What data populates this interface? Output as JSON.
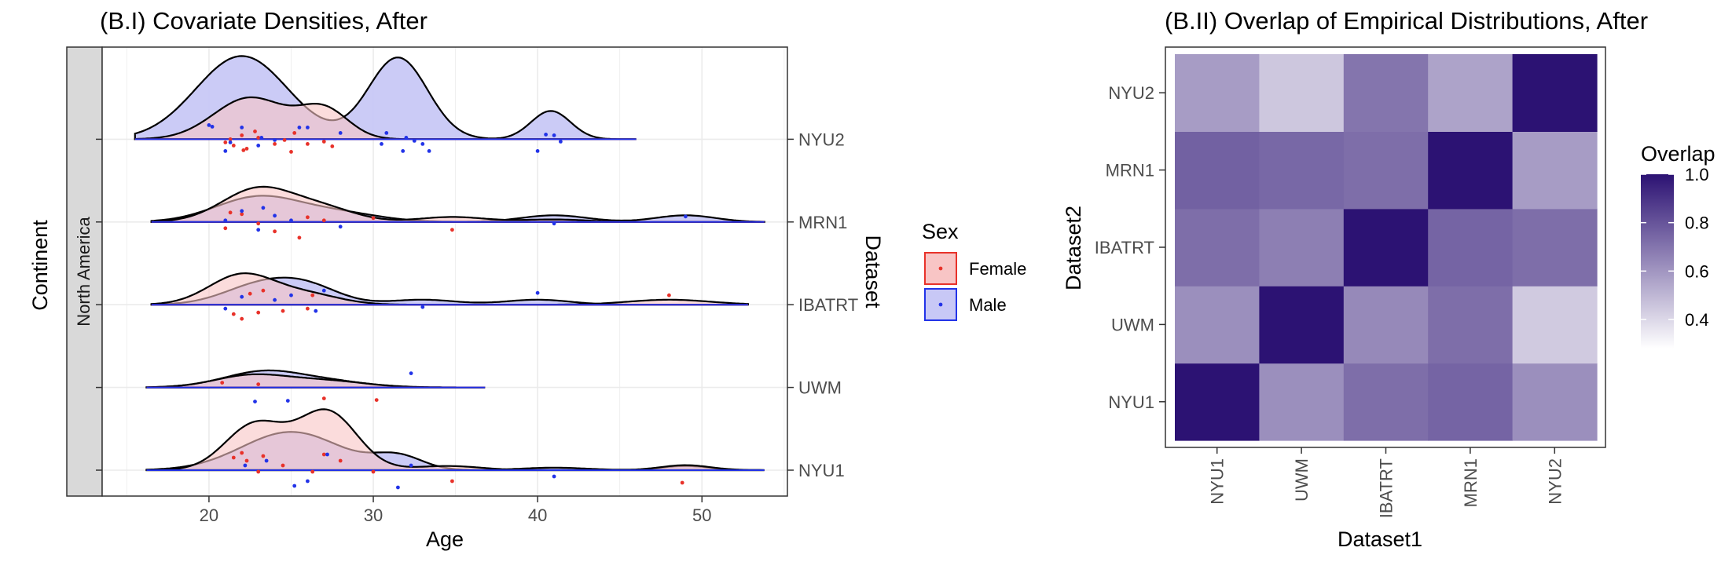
{
  "chart_data": [
    {
      "type": "ridgeline-density",
      "title": "(B.I) Covariate Densities, After",
      "xlabel": "Age",
      "ylabel": "Continent",
      "right_label": "Dataset",
      "facet_label": "North America",
      "xlim": [
        13.5,
        55.2
      ],
      "xticks": [
        20,
        30,
        40,
        50
      ],
      "x_tick_labels": [
        "20",
        "30",
        "40",
        "50"
      ],
      "datasets": [
        "NYU1",
        "UWM",
        "IBATRT",
        "MRN1",
        "NYU2"
      ],
      "legend": {
        "title": "Sex",
        "entries": [
          {
            "name": "Female",
            "fill": "#f8c5c5",
            "border": "#e8322a",
            "point": "#e8322a"
          },
          {
            "name": "Male",
            "fill": "#c8c8f6",
            "border": "#2233e8",
            "point": "#2233e8"
          }
        ]
      },
      "series": [
        {
          "dataset": "NYU2",
          "range": [
            15.5,
            46
          ],
          "male_peaks": [
            [
              22,
              1.0,
              2.8
            ],
            [
              31.5,
              0.98,
              1.8
            ],
            [
              40.8,
              0.34,
              1.2
            ]
          ],
          "female_peaks": [
            [
              22.5,
              0.5,
              2.2
            ],
            [
              27,
              0.35,
              1.5
            ]
          ],
          "female_points": [
            [
              21,
              4
            ],
            [
              21.5,
              8
            ],
            [
              22,
              -5
            ],
            [
              22.3,
              12
            ],
            [
              23,
              -2
            ],
            [
              24,
              6
            ],
            [
              25,
              16
            ],
            [
              26,
              6
            ],
            [
              27,
              3
            ],
            [
              21.3,
              0
            ],
            [
              22.8,
              -10
            ],
            [
              25.2,
              -8
            ],
            [
              27.5,
              9
            ],
            [
              24.6,
              1
            ],
            [
              22.1,
              14
            ]
          ],
          "male_points": [
            [
              20,
              -18
            ],
            [
              20.2,
              -16
            ],
            [
              21,
              15
            ],
            [
              21.3,
              4
            ],
            [
              22,
              -15
            ],
            [
              23,
              8
            ],
            [
              23.2,
              -2
            ],
            [
              24,
              1
            ],
            [
              25.5,
              -15
            ],
            [
              26,
              -15
            ],
            [
              28,
              -8
            ],
            [
              30.5,
              6
            ],
            [
              30.8,
              -8
            ],
            [
              31.8,
              15
            ],
            [
              32,
              -2
            ],
            [
              32.5,
              2
            ],
            [
              33,
              6
            ],
            [
              33.4,
              15
            ],
            [
              40,
              15
            ],
            [
              40.5,
              -6
            ],
            [
              41,
              -5
            ],
            [
              41.4,
              3
            ]
          ]
        },
        {
          "dataset": "MRN1",
          "range": [
            16.5,
            53.8
          ],
          "male_peaks": [
            [
              23,
              0.3,
              2.6
            ],
            [
              28,
              0.1,
              2.5
            ],
            [
              41,
              0.08,
              2.0
            ],
            [
              49,
              0.08,
              1.8
            ]
          ],
          "female_peaks": [
            [
              23,
              0.4,
              2.2
            ],
            [
              27,
              0.15,
              2.0
            ],
            [
              34.8,
              0.06,
              2.0
            ],
            [
              41,
              0.03,
              2.0
            ]
          ],
          "female_points": [
            [
              21,
              8
            ],
            [
              21.3,
              -12
            ],
            [
              22,
              -10
            ],
            [
              23,
              2
            ],
            [
              24,
              12
            ],
            [
              25.5,
              20
            ],
            [
              26,
              -6
            ],
            [
              27,
              -2
            ],
            [
              30,
              -5
            ],
            [
              34.8,
              10
            ]
          ],
          "male_points": [
            [
              21,
              -2
            ],
            [
              22,
              -14
            ],
            [
              23,
              10
            ],
            [
              23.3,
              -18
            ],
            [
              24,
              -8
            ],
            [
              25,
              -2
            ],
            [
              28,
              6
            ],
            [
              41,
              2
            ],
            [
              49,
              -7
            ]
          ]
        },
        {
          "dataset": "IBATRT",
          "range": [
            16.5,
            52.8
          ],
          "male_peaks": [
            [
              23,
              0.22,
              2.2
            ],
            [
              26,
              0.2,
              2.0
            ],
            [
              33,
              0.06,
              2.0
            ],
            [
              40,
              0.06,
              2.0
            ]
          ],
          "female_peaks": [
            [
              22,
              0.36,
              2.0
            ],
            [
              26,
              0.12,
              2.0
            ],
            [
              48,
              0.06,
              2.5
            ]
          ],
          "female_points": [
            [
              21.5,
              12
            ],
            [
              22,
              18
            ],
            [
              22.5,
              -14
            ],
            [
              23,
              10
            ],
            [
              23.3,
              -18
            ],
            [
              24.5,
              8
            ],
            [
              26,
              5
            ],
            [
              26.3,
              -12
            ],
            [
              48,
              -12
            ]
          ],
          "male_points": [
            [
              21,
              5
            ],
            [
              22,
              -10
            ],
            [
              24,
              -6
            ],
            [
              25,
              -12
            ],
            [
              26.5,
              8
            ],
            [
              27,
              -18
            ],
            [
              33,
              3
            ],
            [
              40,
              -15
            ]
          ]
        },
        {
          "dataset": "UWM",
          "range": [
            16.2,
            36.8
          ],
          "male_peaks": [
            [
              23.5,
              0.2,
              2.5
            ],
            [
              28,
              0.05,
              2.0
            ]
          ],
          "female_peaks": [
            [
              22.5,
              0.14,
              2.2
            ],
            [
              27,
              0.08,
              2.5
            ]
          ],
          "female_points": [
            [
              20.8,
              -6
            ],
            [
              23,
              -4
            ],
            [
              27,
              14
            ],
            [
              30.2,
              16
            ]
          ],
          "male_points": [
            [
              22.8,
              18
            ],
            [
              24.8,
              17
            ],
            [
              32.3,
              -18
            ]
          ]
        },
        {
          "dataset": "NYU1",
          "range": [
            16.2,
            53.8
          ],
          "male_peaks": [
            [
              25,
              0.46,
              3.0
            ],
            [
              31.5,
              0.16,
              1.5
            ],
            [
              41,
              0.03,
              2.0
            ],
            [
              49,
              0.05,
              1.5
            ]
          ],
          "female_peaks": [
            [
              22.8,
              0.55,
              1.8
            ],
            [
              27.2,
              0.7,
              1.8
            ],
            [
              34.5,
              0.05,
              2.0
            ],
            [
              49,
              0.06,
              1.5
            ]
          ],
          "female_points": [
            [
              21.5,
              -16
            ],
            [
              22,
              -22
            ],
            [
              22.3,
              -12
            ],
            [
              23,
              2
            ],
            [
              23.3,
              -18
            ],
            [
              24.5,
              -6
            ],
            [
              26.3,
              2
            ],
            [
              27,
              -20
            ],
            [
              28,
              -12
            ],
            [
              30,
              2
            ],
            [
              34.8,
              14
            ],
            [
              48.8,
              16
            ]
          ],
          "male_points": [
            [
              22.2,
              -6
            ],
            [
              23.5,
              -12
            ],
            [
              25.2,
              20
            ],
            [
              26,
              14
            ],
            [
              27.2,
              -20
            ],
            [
              31.5,
              22
            ],
            [
              32.3,
              -6
            ],
            [
              41,
              8
            ]
          ]
        }
      ]
    },
    {
      "type": "heatmap",
      "title": "(B.II) Overlap of Empirical Distributions, After",
      "xlabel": "Dataset1",
      "ylabel": "Dataset2",
      "x_categories": [
        "NYU1",
        "UWM",
        "IBATRT",
        "MRN1",
        "NYU2"
      ],
      "y_categories": [
        "NYU1",
        "UWM",
        "IBATRT",
        "MRN1",
        "NYU2"
      ],
      "values": [
        [
          1.0,
          0.62,
          0.72,
          0.75,
          0.62
        ],
        [
          0.62,
          1.0,
          0.64,
          0.72,
          0.44
        ],
        [
          0.72,
          0.67,
          1.0,
          0.75,
          0.72
        ],
        [
          0.76,
          0.74,
          0.72,
          1.0,
          0.58
        ],
        [
          0.58,
          0.45,
          0.7,
          0.56,
          1.0
        ]
      ],
      "legend_title": "Overlap",
      "scale": {
        "low": 0.28,
        "high": 1.0,
        "low_color": "#ffffff",
        "high_color": "#2c1273"
      },
      "legend_ticks": [
        0.4,
        0.6,
        0.8,
        1.0
      ],
      "legend_tick_labels": [
        "0.4",
        "0.6",
        "0.8",
        "1.0"
      ]
    }
  ]
}
